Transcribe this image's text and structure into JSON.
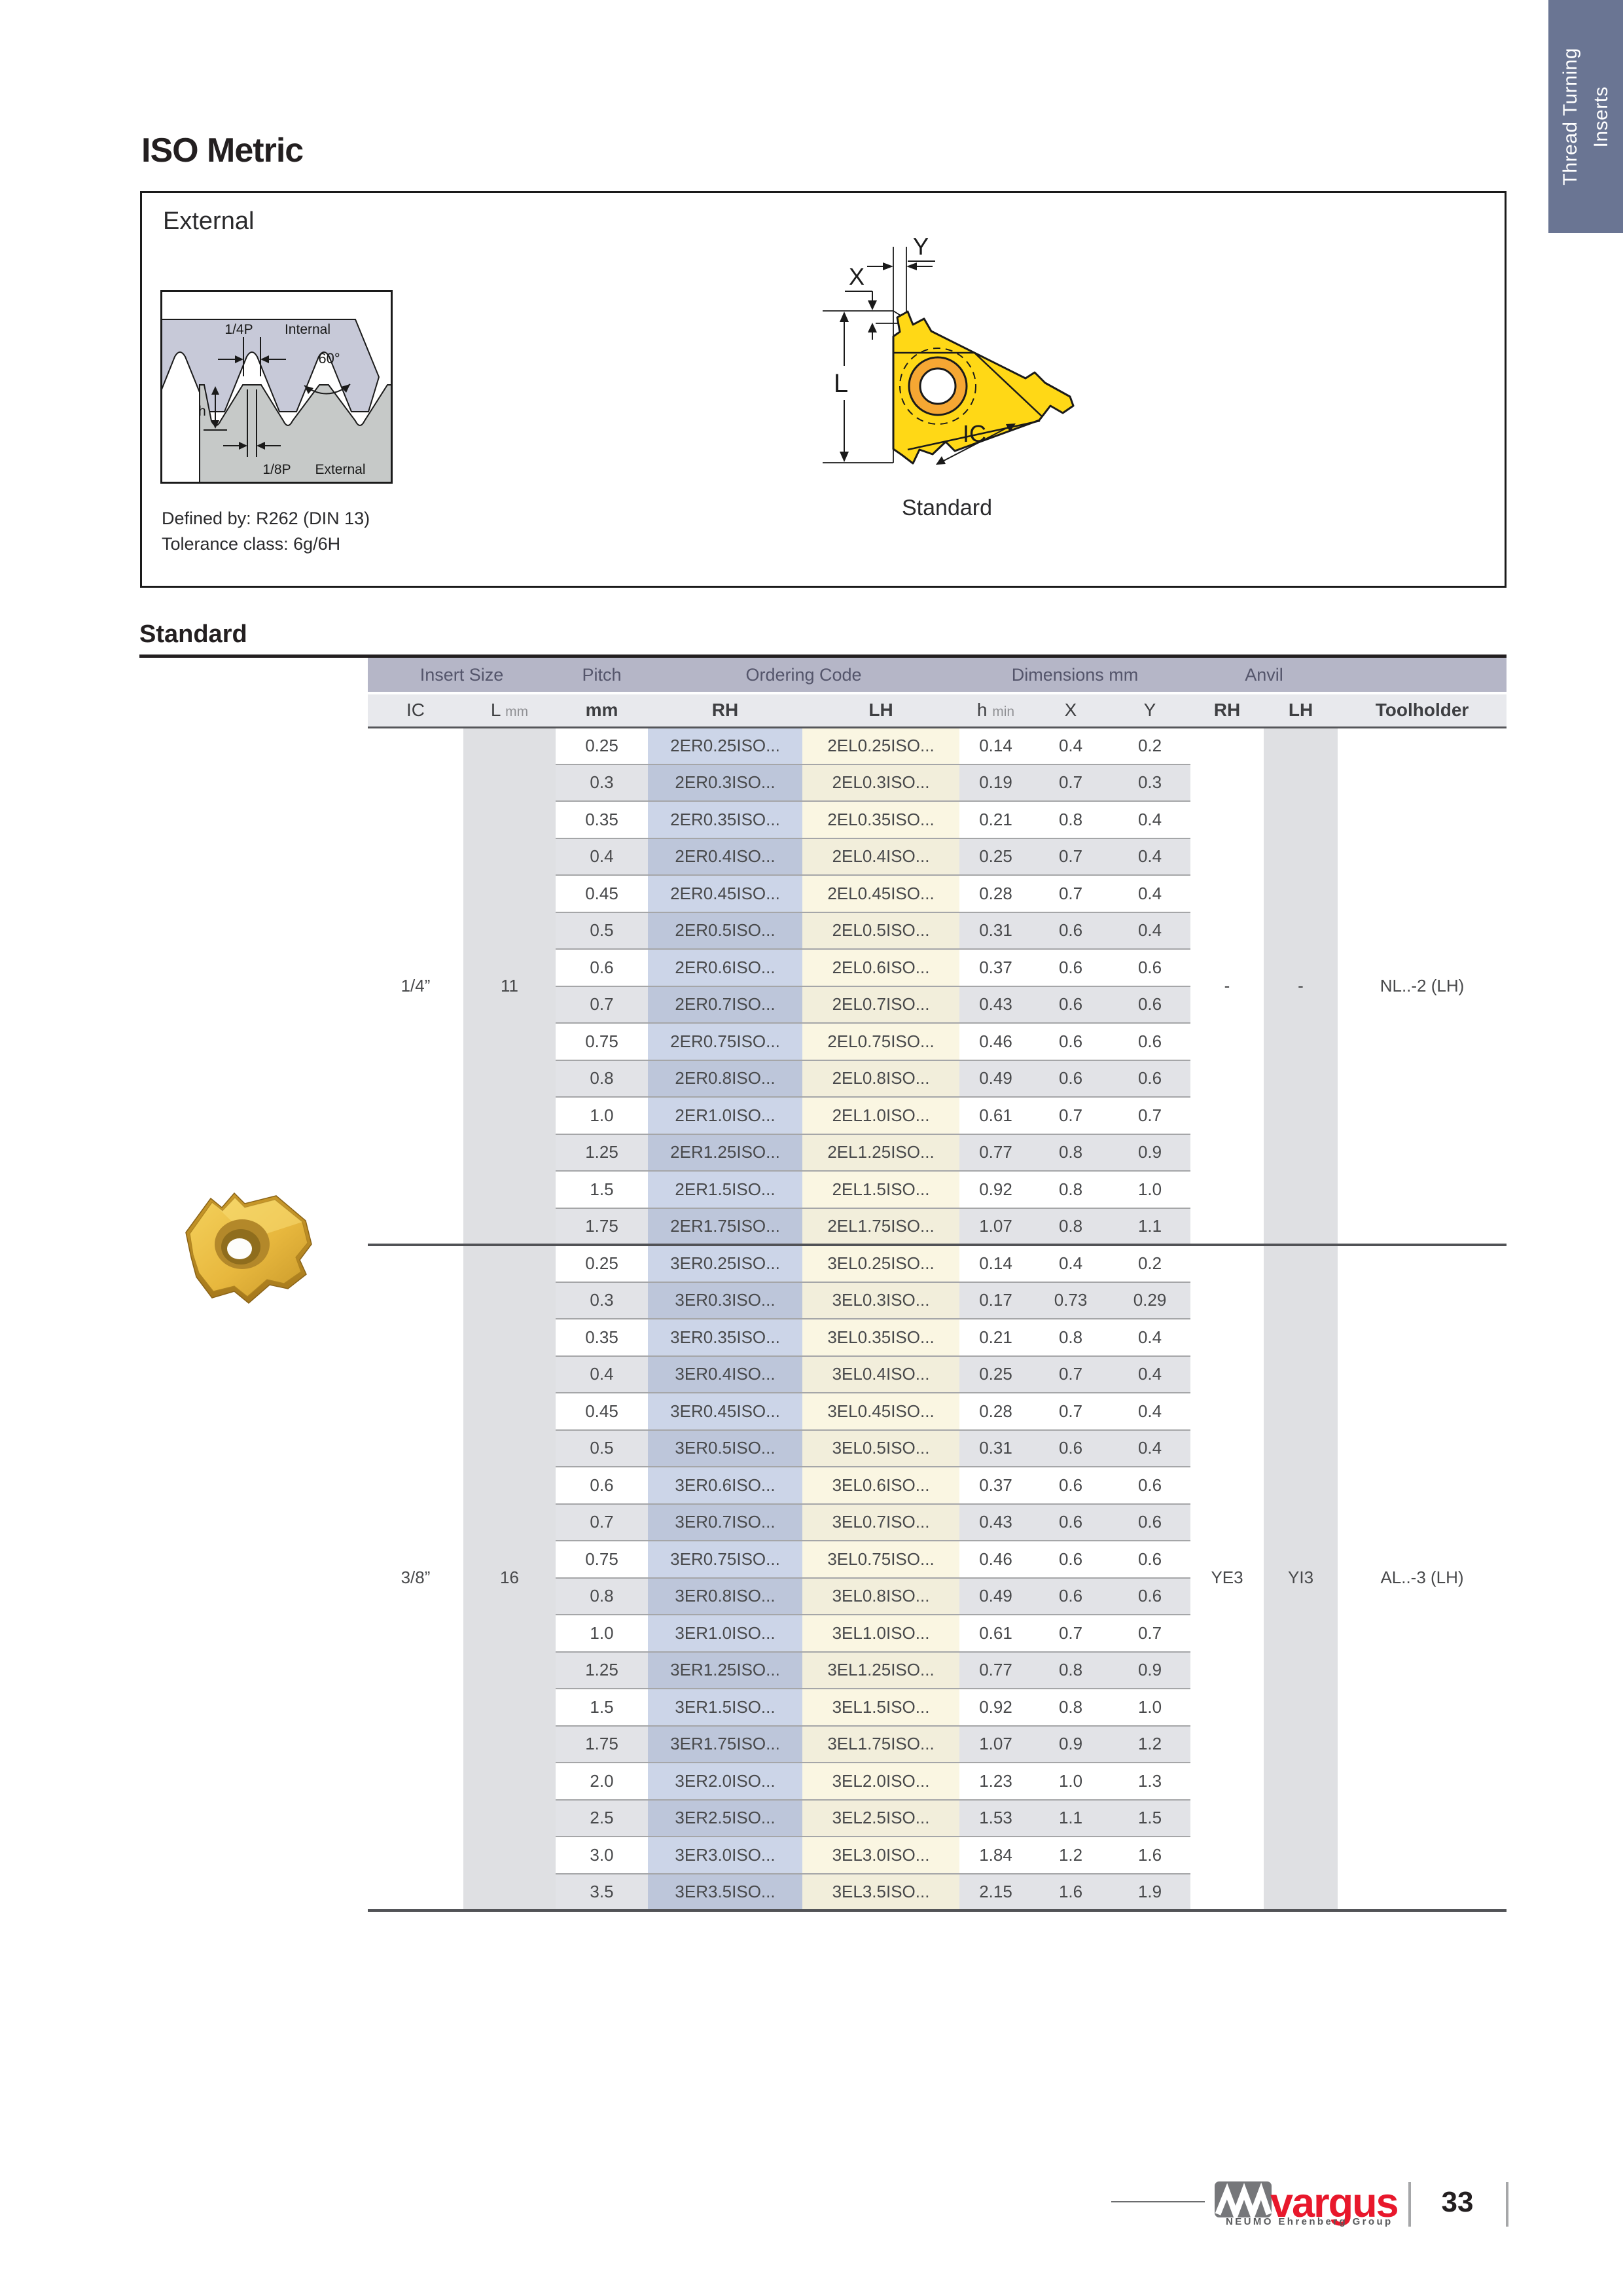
{
  "side_tab": {
    "line1": "Thread Turning",
    "line2": "Inserts",
    "color": "#6a7593"
  },
  "page_title": "ISO Metric",
  "external_box": {
    "title": "External",
    "defined_by": "Defined by: R262 (DIN 13)",
    "tolerance": "Tolerance class: 6g/6H",
    "caption": "Standard",
    "profile_labels": {
      "quarter_p": "1/4P",
      "internal": "Internal",
      "angle": "60°",
      "h": "h",
      "eighth_p": "1/8P",
      "external": "External"
    },
    "insert_labels": {
      "x": "X",
      "y": "Y",
      "l": "L",
      "ic": "IC"
    }
  },
  "section_heading": "Standard",
  "table": {
    "groups": {
      "insert_size": "Insert Size",
      "pitch": "Pitch",
      "ordering_code": "Ordering Code",
      "dimensions": "Dimensions mm",
      "anvil": "Anvil"
    },
    "subheaders": {
      "ic": "IC",
      "l": "L",
      "l_unit": "mm",
      "pitch_mm": "mm",
      "rh": "RH",
      "lh": "LH",
      "h": "h",
      "h_unit": "min",
      "x": "X",
      "y": "Y",
      "anvil_rh": "RH",
      "anvil_lh": "LH",
      "toolholder": "Toolholder"
    },
    "sections": [
      {
        "ic": "1/4”",
        "l": "11",
        "anvil_rh": "-",
        "anvil_lh": "-",
        "toolholder": "NL..-2 (LH)",
        "rows": [
          [
            "0.25",
            "2ER0.25ISO...",
            "2EL0.25ISO...",
            "0.14",
            "0.4",
            "0.2"
          ],
          [
            "0.3",
            "2ER0.3ISO...",
            "2EL0.3ISO...",
            "0.19",
            "0.7",
            "0.3"
          ],
          [
            "0.35",
            "2ER0.35ISO...",
            "2EL0.35ISO...",
            "0.21",
            "0.8",
            "0.4"
          ],
          [
            "0.4",
            "2ER0.4ISO...",
            "2EL0.4ISO...",
            "0.25",
            "0.7",
            "0.4"
          ],
          [
            "0.45",
            "2ER0.45ISO...",
            "2EL0.45ISO...",
            "0.28",
            "0.7",
            "0.4"
          ],
          [
            "0.5",
            "2ER0.5ISO...",
            "2EL0.5ISO...",
            "0.31",
            "0.6",
            "0.4"
          ],
          [
            "0.6",
            "2ER0.6ISO...",
            "2EL0.6ISO...",
            "0.37",
            "0.6",
            "0.6"
          ],
          [
            "0.7",
            "2ER0.7ISO...",
            "2EL0.7ISO...",
            "0.43",
            "0.6",
            "0.6"
          ],
          [
            "0.75",
            "2ER0.75ISO...",
            "2EL0.75ISO...",
            "0.46",
            "0.6",
            "0.6"
          ],
          [
            "0.8",
            "2ER0.8ISO...",
            "2EL0.8ISO...",
            "0.49",
            "0.6",
            "0.6"
          ],
          [
            "1.0",
            "2ER1.0ISO...",
            "2EL1.0ISO...",
            "0.61",
            "0.7",
            "0.7"
          ],
          [
            "1.25",
            "2ER1.25ISO...",
            "2EL1.25ISO...",
            "0.77",
            "0.8",
            "0.9"
          ],
          [
            "1.5",
            "2ER1.5ISO...",
            "2EL1.5ISO...",
            "0.92",
            "0.8",
            "1.0"
          ],
          [
            "1.75",
            "2ER1.75ISO...",
            "2EL1.75ISO...",
            "1.07",
            "0.8",
            "1.1"
          ]
        ]
      },
      {
        "ic": "3/8”",
        "l": "16",
        "anvil_rh": "YE3",
        "anvil_lh": "YI3",
        "toolholder": "AL..-3 (LH)",
        "rows": [
          [
            "0.25",
            "3ER0.25ISO...",
            "3EL0.25ISO...",
            "0.14",
            "0.4",
            "0.2"
          ],
          [
            "0.3",
            "3ER0.3ISO...",
            "3EL0.3ISO...",
            "0.17",
            "0.73",
            "0.29"
          ],
          [
            "0.35",
            "3ER0.35ISO...",
            "3EL0.35ISO...",
            "0.21",
            "0.8",
            "0.4"
          ],
          [
            "0.4",
            "3ER0.4ISO...",
            "3EL0.4ISO...",
            "0.25",
            "0.7",
            "0.4"
          ],
          [
            "0.45",
            "3ER0.45ISO...",
            "3EL0.45ISO...",
            "0.28",
            "0.7",
            "0.4"
          ],
          [
            "0.5",
            "3ER0.5ISO...",
            "3EL0.5ISO...",
            "0.31",
            "0.6",
            "0.4"
          ],
          [
            "0.6",
            "3ER0.6ISO...",
            "3EL0.6ISO...",
            "0.37",
            "0.6",
            "0.6"
          ],
          [
            "0.7",
            "3ER0.7ISO...",
            "3EL0.7ISO...",
            "0.43",
            "0.6",
            "0.6"
          ],
          [
            "0.75",
            "3ER0.75ISO...",
            "3EL0.75ISO...",
            "0.46",
            "0.6",
            "0.6"
          ],
          [
            "0.8",
            "3ER0.8ISO...",
            "3EL0.8ISO...",
            "0.49",
            "0.6",
            "0.6"
          ],
          [
            "1.0",
            "3ER1.0ISO...",
            "3EL1.0ISO...",
            "0.61",
            "0.7",
            "0.7"
          ],
          [
            "1.25",
            "3ER1.25ISO...",
            "3EL1.25ISO...",
            "0.77",
            "0.8",
            "0.9"
          ],
          [
            "1.5",
            "3ER1.5ISO...",
            "3EL1.5ISO...",
            "0.92",
            "0.8",
            "1.0"
          ],
          [
            "1.75",
            "3ER1.75ISO...",
            "3EL1.75ISO...",
            "1.07",
            "0.9",
            "1.2"
          ],
          [
            "2.0",
            "3ER2.0ISO...",
            "3EL2.0ISO...",
            "1.23",
            "1.0",
            "1.3"
          ],
          [
            "2.5",
            "3ER2.5ISO...",
            "3EL2.5ISO...",
            "1.53",
            "1.1",
            "1.5"
          ],
          [
            "3.0",
            "3ER3.0ISO...",
            "3EL3.0ISO...",
            "1.84",
            "1.2",
            "1.6"
          ],
          [
            "3.5",
            "3ER3.5ISO...",
            "3EL3.5ISO...",
            "2.15",
            "1.6",
            "1.9"
          ]
        ]
      }
    ]
  },
  "footer": {
    "brand": "vargus",
    "brand_sub": "NEUMO Ehrenberg Group",
    "page_number": "33"
  }
}
